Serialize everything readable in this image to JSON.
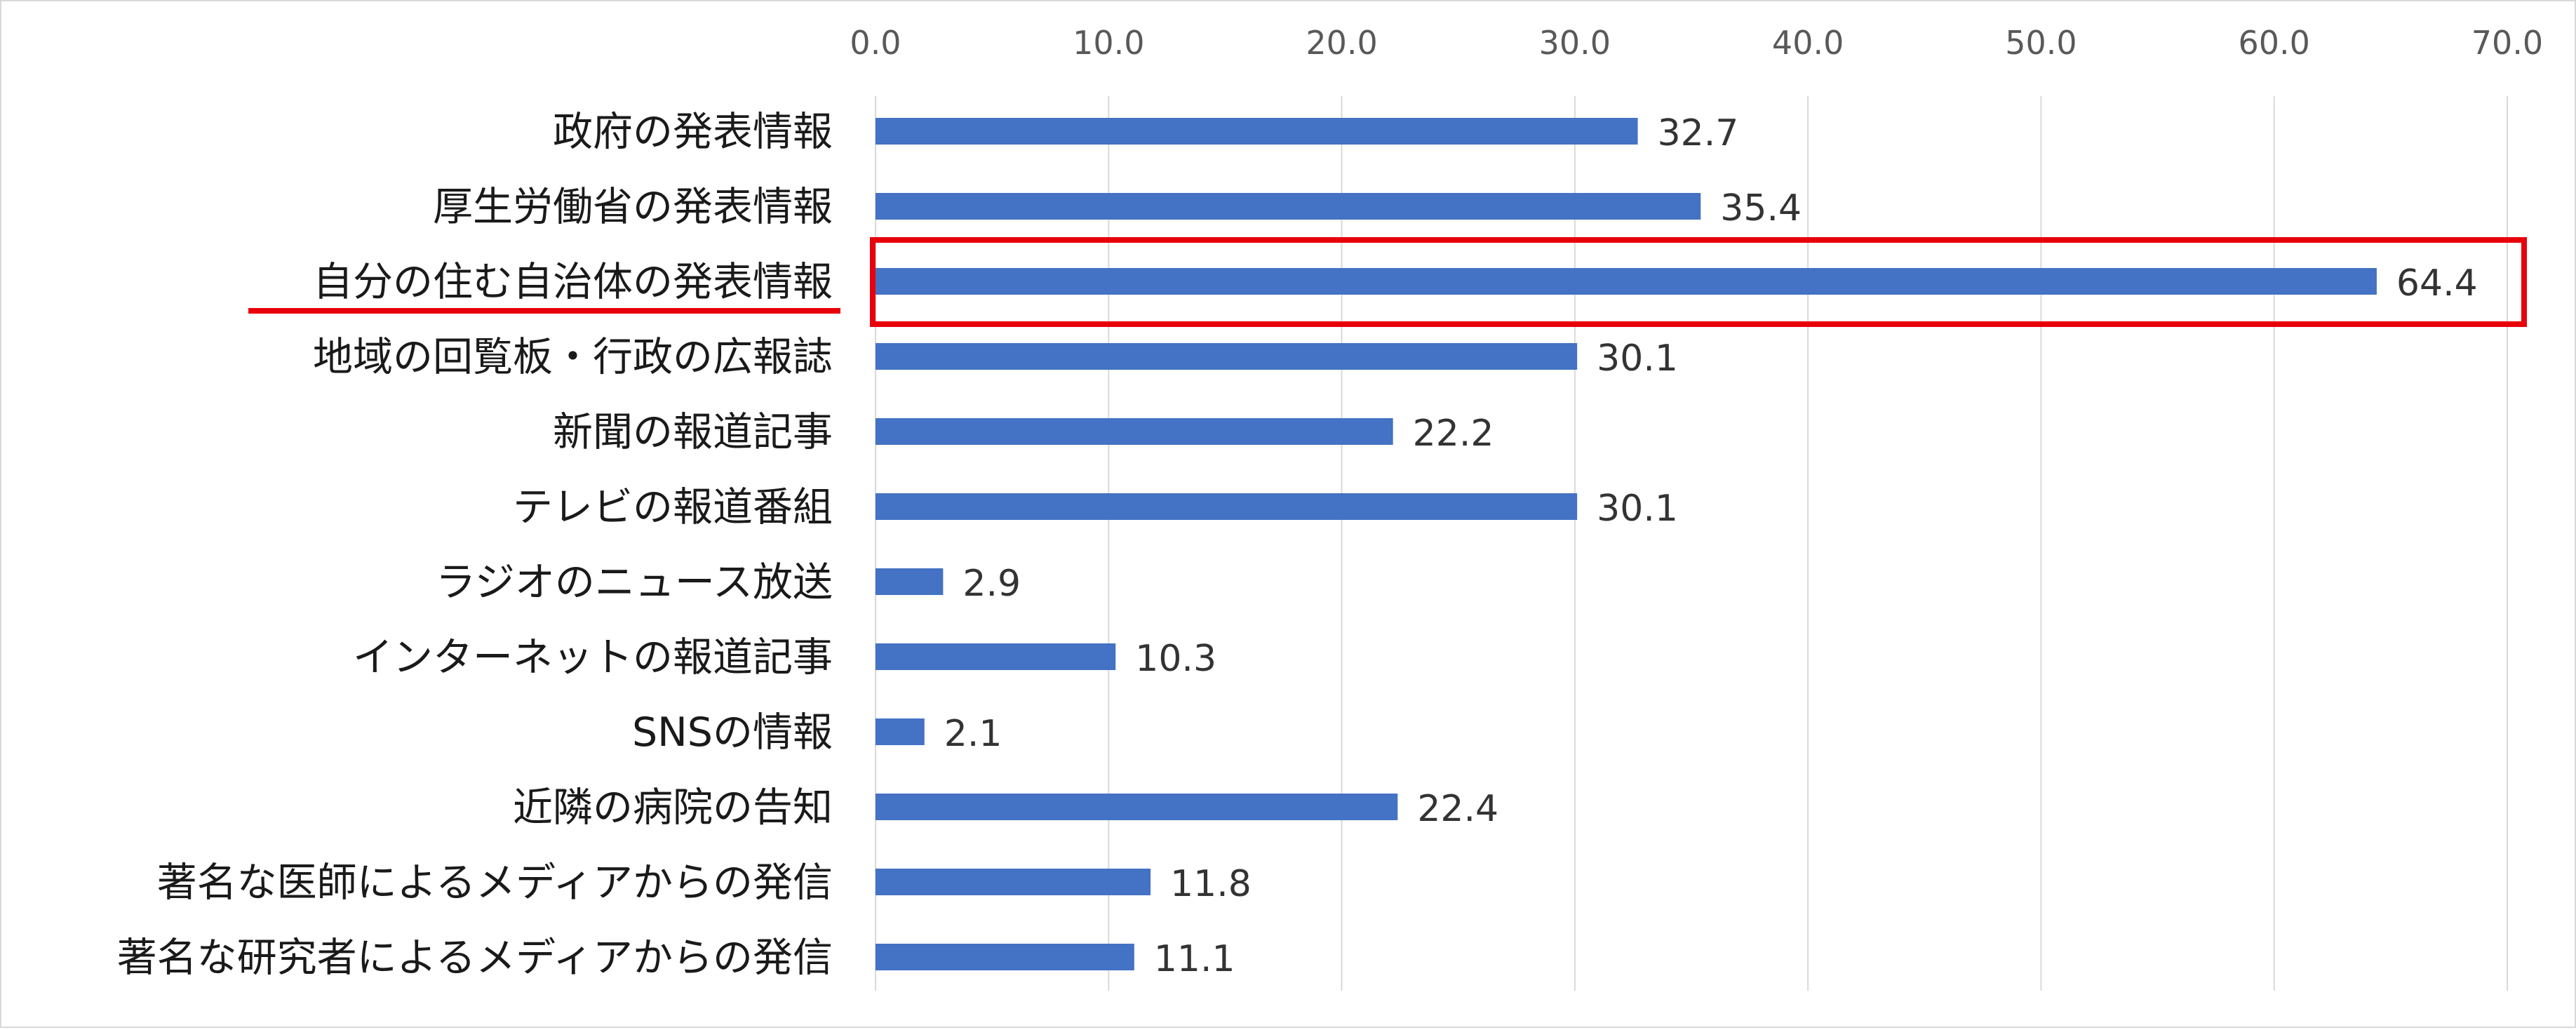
{
  "chart_data": {
    "type": "bar",
    "orientation": "horizontal",
    "categories": [
      "政府の発表情報",
      "厚生労働省の発表情報",
      "自分の住む自治体の発表情報",
      "地域の回覧板・行政の広報誌",
      "新聞の報道記事",
      "テレビの報道番組",
      "ラジオのニュース放送",
      "インターネットの報道記事",
      "SNSの情報",
      "近隣の病院の告知",
      "著名な医師によるメディアからの発信",
      "著名な研究者によるメディアからの発信"
    ],
    "values": [
      32.7,
      35.4,
      64.4,
      30.1,
      22.2,
      30.1,
      2.9,
      10.3,
      2.1,
      22.4,
      11.8,
      11.1
    ],
    "value_labels": [
      "32.7",
      "35.4",
      "64.4",
      "30.1",
      "22.2",
      "30.1",
      "2.9",
      "10.3",
      "2.1",
      "22.4",
      "11.8",
      "11.1"
    ],
    "xlim": [
      0,
      70
    ],
    "xticks": [
      "0.0",
      "10.0",
      "20.0",
      "30.0",
      "40.0",
      "50.0",
      "60.0",
      "70.0"
    ],
    "x_axis_position": "top",
    "grid": true,
    "legend": "none",
    "highlighted_category_index": 2,
    "title": "",
    "xlabel": "",
    "ylabel": ""
  },
  "colors": {
    "bar": "#4472c4",
    "gridline": "#d9d9d9",
    "highlight": "#e8000b"
  }
}
